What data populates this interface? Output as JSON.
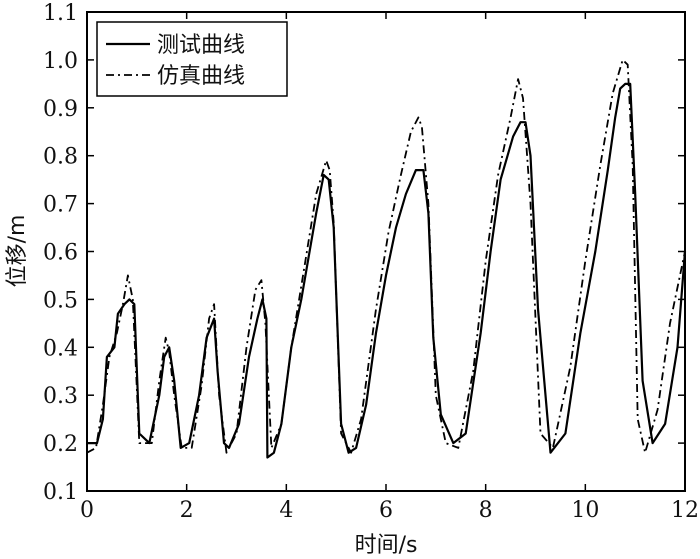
{
  "chart_data": {
    "type": "line",
    "title": "",
    "xlabel": "时间/s",
    "ylabel": "位移/m",
    "xlim": [
      0,
      12
    ],
    "ylim": [
      0.1,
      1.1
    ],
    "grid": false,
    "legend_position": "top-left",
    "x_ticks": [
      "0",
      "2",
      "4",
      "6",
      "8",
      "10",
      "12"
    ],
    "y_ticks": [
      "0.1",
      "0.2",
      "0.3",
      "0.4",
      "0.5",
      "0.6",
      "0.7",
      "0.8",
      "0.9",
      "1.0",
      "1.1"
    ],
    "series": [
      {
        "name": "测试曲线",
        "style": "solid",
        "color": "#000000",
        "x": [
          0,
          0.2,
          0.32,
          0.4,
          0.55,
          0.62,
          0.75,
          0.85,
          0.95,
          1.05,
          1.25,
          1.45,
          1.55,
          1.65,
          1.75,
          1.88,
          2.05,
          2.25,
          2.4,
          2.55,
          2.62,
          2.75,
          2.85,
          3.05,
          3.25,
          3.42,
          3.52,
          3.6,
          3.62,
          3.75,
          3.9,
          4.1,
          4.3,
          4.6,
          4.75,
          4.85,
          4.95,
          5.1,
          5.25,
          5.4,
          5.6,
          5.8,
          6.0,
          6.2,
          6.4,
          6.6,
          6.75,
          6.85,
          6.95,
          7.1,
          7.35,
          7.6,
          7.9,
          8.1,
          8.3,
          8.55,
          8.7,
          8.8,
          8.9,
          9.05,
          9.3,
          9.6,
          9.9,
          10.2,
          10.45,
          10.6,
          10.7,
          10.8,
          10.9,
          11.0,
          11.15,
          11.35,
          11.6,
          11.85,
          12.0
        ],
        "y": [
          0.2,
          0.2,
          0.25,
          0.38,
          0.4,
          0.47,
          0.49,
          0.5,
          0.49,
          0.22,
          0.2,
          0.3,
          0.38,
          0.4,
          0.33,
          0.19,
          0.2,
          0.3,
          0.42,
          0.46,
          0.35,
          0.2,
          0.19,
          0.24,
          0.38,
          0.46,
          0.5,
          0.46,
          0.17,
          0.18,
          0.24,
          0.4,
          0.5,
          0.68,
          0.76,
          0.75,
          0.65,
          0.24,
          0.18,
          0.19,
          0.28,
          0.43,
          0.55,
          0.65,
          0.72,
          0.77,
          0.77,
          0.68,
          0.42,
          0.26,
          0.2,
          0.22,
          0.43,
          0.6,
          0.75,
          0.84,
          0.87,
          0.87,
          0.8,
          0.48,
          0.18,
          0.22,
          0.43,
          0.6,
          0.77,
          0.88,
          0.94,
          0.95,
          0.95,
          0.72,
          0.33,
          0.2,
          0.24,
          0.4,
          0.6
        ]
      },
      {
        "name": "仿真曲线",
        "style": "dash-dot",
        "color": "#000000",
        "x": [
          0,
          0.18,
          0.32,
          0.45,
          0.6,
          0.72,
          0.82,
          0.92,
          1.05,
          1.3,
          1.45,
          1.58,
          1.65,
          1.75,
          1.9,
          2.1,
          2.3,
          2.45,
          2.55,
          2.65,
          2.8,
          3.0,
          3.2,
          3.38,
          3.5,
          3.58,
          3.7,
          3.9,
          4.1,
          4.35,
          4.6,
          4.8,
          4.87,
          4.95,
          5.1,
          5.3,
          5.5,
          5.8,
          6.05,
          6.3,
          6.5,
          6.65,
          6.72,
          6.85,
          7.0,
          7.2,
          7.45,
          7.75,
          8.0,
          8.25,
          8.5,
          8.65,
          8.75,
          8.9,
          9.1,
          9.35,
          9.7,
          10.0,
          10.3,
          10.55,
          10.75,
          10.85,
          10.95,
          11.05,
          11.2,
          11.45,
          11.7,
          11.9,
          12.0
        ],
        "y": [
          0.18,
          0.19,
          0.28,
          0.38,
          0.43,
          0.49,
          0.55,
          0.5,
          0.2,
          0.2,
          0.33,
          0.42,
          0.39,
          0.3,
          0.19,
          0.19,
          0.32,
          0.46,
          0.49,
          0.3,
          0.18,
          0.22,
          0.4,
          0.52,
          0.54,
          0.45,
          0.19,
          0.24,
          0.4,
          0.56,
          0.72,
          0.79,
          0.77,
          0.66,
          0.22,
          0.18,
          0.25,
          0.48,
          0.64,
          0.76,
          0.85,
          0.88,
          0.86,
          0.7,
          0.3,
          0.2,
          0.19,
          0.35,
          0.58,
          0.76,
          0.88,
          0.96,
          0.92,
          0.7,
          0.22,
          0.19,
          0.36,
          0.58,
          0.78,
          0.93,
          1.0,
          0.99,
          0.78,
          0.25,
          0.18,
          0.27,
          0.45,
          0.55,
          0.6
        ]
      }
    ]
  }
}
